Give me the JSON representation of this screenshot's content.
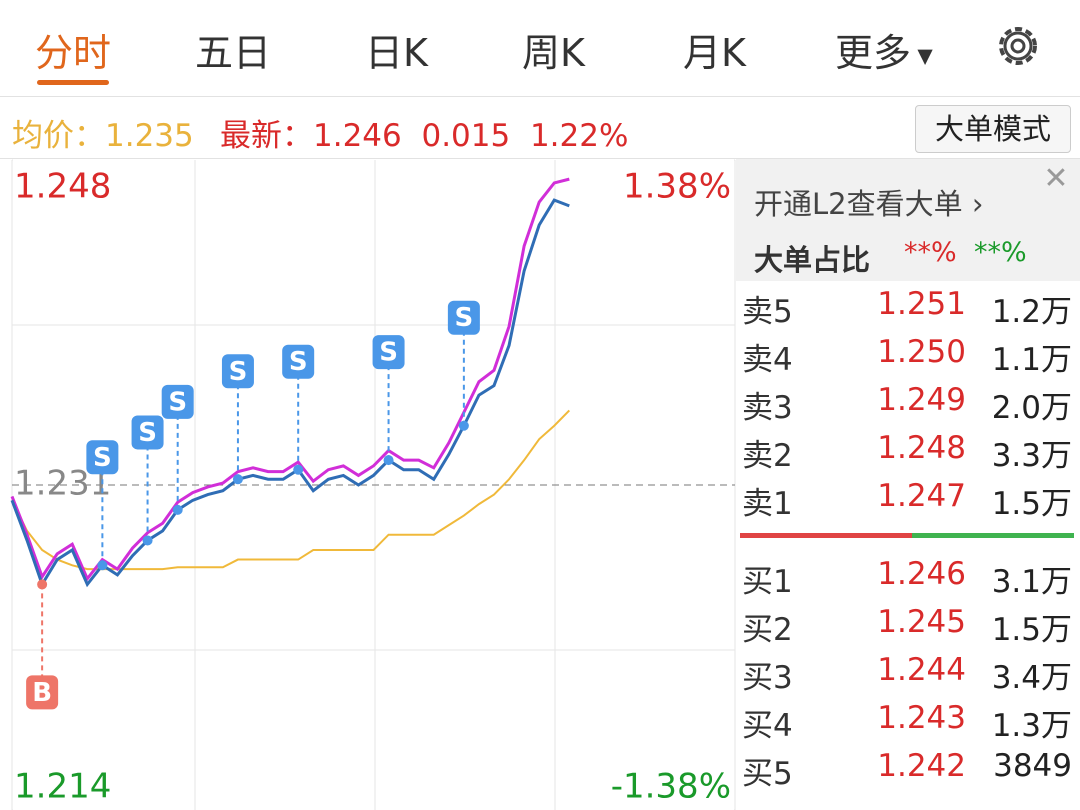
{
  "tabs": [
    "分时",
    "五日",
    "日K",
    "周K",
    "月K",
    "更多"
  ],
  "info": {
    "avg_label": "均价：",
    "avg": "1.235",
    "latest_label": "最新：",
    "latest": "1.246",
    "change": "0.015",
    "change_pct": "1.22%",
    "button": "大单模式"
  },
  "chart_data": {
    "type": "line",
    "ylim": [
      1.214,
      1.248
    ],
    "yticks": [
      1.214,
      1.231,
      1.248
    ],
    "y2lim": [
      -1.38,
      1.38
    ],
    "y2ticks": [
      {
        "value": -1.38,
        "label": "-1.38%"
      },
      {
        "value": 1.38,
        "label": "1.38%"
      }
    ],
    "grid": true,
    "series": [
      {
        "name": "price",
        "color": "#2f6db5",
        "values": [
          1.2302,
          1.2281,
          1.2258,
          1.2271,
          1.2276,
          1.2258,
          1.2268,
          1.2263,
          1.2273,
          1.2281,
          1.2286,
          1.2297,
          1.2302,
          1.2305,
          1.2307,
          1.2313,
          1.2315,
          1.2313,
          1.2313,
          1.2318,
          1.2307,
          1.2313,
          1.2315,
          1.231,
          1.2315,
          1.2323,
          1.2318,
          1.2318,
          1.2313,
          1.2326,
          1.2341,
          1.2357,
          1.2362,
          1.2383,
          1.2422,
          1.2446,
          1.2459,
          1.2456
        ]
      },
      {
        "name": "l2-price",
        "color": "#d12ed8",
        "values": [
          1.2304,
          1.2284,
          1.2262,
          1.2274,
          1.2279,
          1.2261,
          1.2271,
          1.2266,
          1.2277,
          1.2285,
          1.229,
          1.2301,
          1.2306,
          1.2309,
          1.2311,
          1.2317,
          1.2319,
          1.2317,
          1.2317,
          1.2322,
          1.2312,
          1.2318,
          1.232,
          1.2315,
          1.232,
          1.2328,
          1.2323,
          1.2323,
          1.2319,
          1.2332,
          1.2348,
          1.2364,
          1.237,
          1.2393,
          1.2435,
          1.2458,
          1.2468,
          1.247
        ]
      },
      {
        "name": "average",
        "color": "#f0b93a",
        "values": [
          1.2302,
          1.2286,
          1.2276,
          1.2271,
          1.2268,
          1.2266,
          1.2266,
          1.2266,
          1.2266,
          1.2266,
          1.2266,
          1.2267,
          1.2267,
          1.2267,
          1.2267,
          1.2271,
          1.2271,
          1.2271,
          1.2271,
          1.2271,
          1.2276,
          1.2276,
          1.2276,
          1.2276,
          1.2276,
          1.2284,
          1.2284,
          1.2284,
          1.2284,
          1.2289,
          1.2294,
          1.23,
          1.2305,
          1.2313,
          1.2323,
          1.2334,
          1.2341,
          1.2349
        ]
      }
    ],
    "trades": [
      {
        "label": "B",
        "index": 2
      },
      {
        "label": "S",
        "index": 6
      },
      {
        "label": "S",
        "index": 9
      },
      {
        "label": "S",
        "index": 11
      },
      {
        "label": "S",
        "index": 15
      },
      {
        "label": "S",
        "index": 19
      },
      {
        "label": "S",
        "index": 25
      },
      {
        "label": "S",
        "index": 30
      }
    ]
  },
  "order_book": {
    "promo": "开通L2查看大单 ›",
    "ratio_label": "大单占比",
    "ratio_sell": "**%",
    "ratio_buy": "**%",
    "asks": [
      [
        "卖5",
        "1.251",
        "1.2万"
      ],
      [
        "卖4",
        "1.250",
        "1.1万"
      ],
      [
        "卖3",
        "1.249",
        "2.0万"
      ],
      [
        "卖2",
        "1.248",
        "3.3万"
      ],
      [
        "卖1",
        "1.247",
        "1.5万"
      ]
    ],
    "bids": [
      [
        "买1",
        "1.246",
        "3.1万"
      ],
      [
        "买2",
        "1.245",
        "1.5万"
      ],
      [
        "买3",
        "1.244",
        "3.4万"
      ],
      [
        "买4",
        "1.243",
        "1.3万"
      ],
      [
        "买5",
        "1.242",
        "3849"
      ]
    ]
  }
}
